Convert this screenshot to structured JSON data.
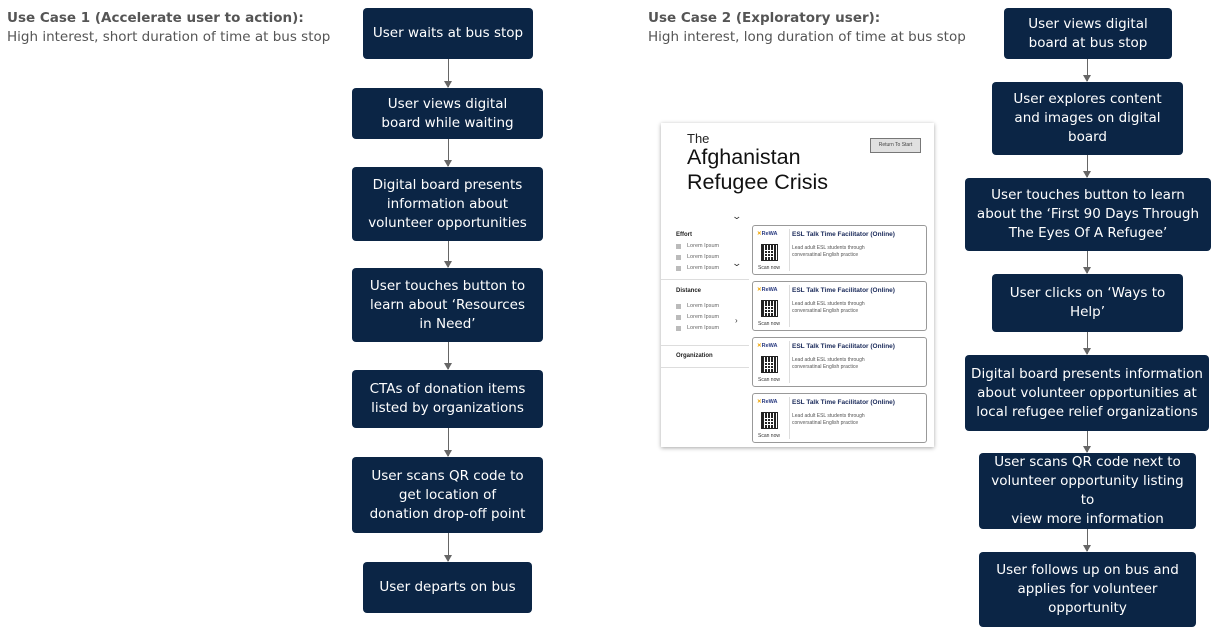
{
  "use_case_1": {
    "title": "Use Case 1 (Accelerate user to action):",
    "subtitle": "High interest, short duration of time at bus stop",
    "steps": [
      "User waits at bus stop",
      "User views digital\nboard while waiting",
      "Digital board presents\ninformation about\nvolunteer opportunities",
      "User touches button to\nlearn about ‘Resources\nin Need’",
      "CTAs of donation items\nlisted by organizations",
      "User scans QR code to\nget location of\ndonation drop-off point",
      "User departs on bus"
    ]
  },
  "use_case_2": {
    "title": "Use Case 2 (Exploratory user):",
    "subtitle": "High interest, long duration of time at bus stop",
    "steps": [
      "User views digital\nboard at bus stop",
      "User explores content\nand images on digital\nboard",
      "User touches button to learn\nabout the ‘First 90 Days Through\nThe Eyes Of A Refugee’",
      "User clicks on ‘Ways to\nHelp’",
      "Digital board presents information\nabout volunteer opportunities at\nlocal refugee relief organizations",
      "User scans QR code next to\nvolunteer opportunity listing to\nview more information",
      "User follows up on bus and\napplies for volunteer\nopportunity"
    ]
  },
  "kiosk": {
    "pre_title": "The",
    "title": "Afghanistan\nRefugee Crisis",
    "return_button": "Return To Start",
    "filters": [
      {
        "label": "Effort",
        "options": [
          "Lorem Ipsum",
          "Lorem Ipsum",
          "Lorem Ipsum"
        ]
      },
      {
        "label": "Distance",
        "options": [
          "Lorem Ipsum",
          "Lorem Ipsum",
          "Lorem Ipsum"
        ]
      },
      {
        "label": "Organization",
        "options": []
      }
    ],
    "cards": [
      {
        "logo": "ReWA",
        "title": "ESL Talk Time Facilitator (Online)",
        "description": "Lead adult ESL students through\nconversatinal English practice",
        "scan": "Scan now"
      },
      {
        "logo": "ReWA",
        "title": "ESL Talk Time Facilitator (Online)",
        "description": "Lead adult ESL students through\nconversatinal English practice",
        "scan": "Scan now"
      },
      {
        "logo": "ReWA",
        "title": "ESL Talk Time Facilitator (Online)",
        "description": "Lead adult ESL students through\nconversatinal English practice",
        "scan": "Scan now"
      },
      {
        "logo": "ReWA",
        "title": "ESL Talk Time Facilitator (Online)",
        "description": "Lead adult ESL students through\nconversatinal English practice",
        "scan": "Scan now"
      }
    ]
  },
  "colors": {
    "box": "#0b2545",
    "connector": "#666666",
    "heading": "#555555"
  }
}
